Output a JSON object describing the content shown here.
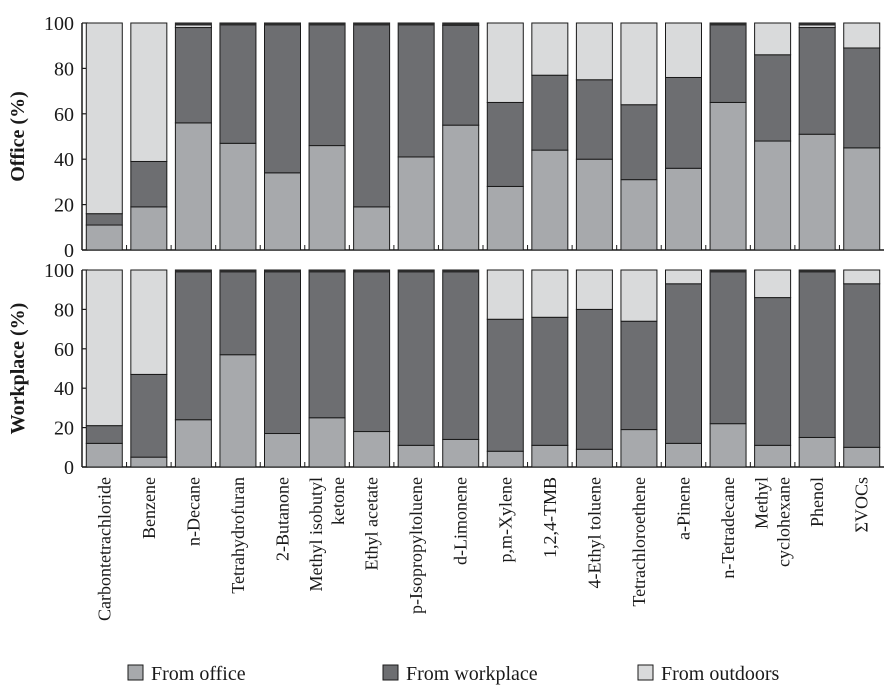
{
  "chart_data": {
    "type": "bar",
    "stacked": true,
    "categories": [
      "Carbontetrachloride",
      "Benzene",
      "n-Decane",
      "Tetrahydrofuran",
      "2-Butanone",
      "Methyl isobutyl ketone",
      "Ethyl acetate",
      "p-Isopropyltoluene",
      "d-Limonene",
      "p,m-Xylene",
      "1,2,4-TMB",
      "4-Ethyl toluene",
      "Tetrachloroethene",
      "a-Pinene",
      "n-Tetradecane",
      "Methyl cyclohexane",
      "Phenol",
      "ΣVOCs"
    ],
    "category_lines": [
      [
        "Carbontetrachloride"
      ],
      [
        "Benzene"
      ],
      [
        "n-Decane"
      ],
      [
        "Tetrahydrofuran"
      ],
      [
        "2-Butanone"
      ],
      [
        "Methyl isobutyl",
        "ketone"
      ],
      [
        "Ethyl acetate"
      ],
      [
        "p-Isopropyltoluene"
      ],
      [
        "d-Limonene"
      ],
      [
        "p,m-Xylene"
      ],
      [
        "1,2,4-TMB"
      ],
      [
        "4-Ethyl toluene"
      ],
      [
        "Tetrachloroethene"
      ],
      [
        "a-Pinene"
      ],
      [
        "n-Tetradecane"
      ],
      [
        "Methyl",
        "cyclohexane"
      ],
      [
        "Phenol"
      ],
      [
        "ΣVOCs"
      ]
    ],
    "legend": {
      "position": "bottom",
      "entries": [
        {
          "label": "From office",
          "color": "#a7a9ac"
        },
        {
          "label": "From workplace",
          "color": "#6d6e71"
        },
        {
          "label": "From outdoors",
          "color": "#d9dadb"
        }
      ]
    },
    "panels": [
      {
        "ylabel": "Office (%)",
        "ylim": [
          0,
          100
        ],
        "yticks": [
          0,
          20,
          40,
          60,
          80,
          100
        ],
        "series": [
          {
            "name": "From office",
            "values": [
              11,
              19,
              56,
              47,
              34,
              46,
              19,
              41,
              55,
              28,
              44,
              40,
              31,
              36,
              65,
              48,
              51,
              45
            ]
          },
          {
            "name": "From workplace",
            "values": [
              5,
              20,
              42,
              53,
              66,
              54,
              81,
              59,
              44,
              37,
              33,
              35,
              33,
              40,
              35,
              38,
              47,
              44
            ]
          },
          {
            "name": "From outdoors",
            "values": [
              84,
              61,
              2,
              0,
              0,
              0,
              0,
              0,
              1,
              35,
              23,
              25,
              36,
              24,
              0,
              14,
              2,
              11
            ]
          }
        ]
      },
      {
        "ylabel": "Workplace (%)",
        "ylim": [
          0,
          100
        ],
        "yticks": [
          0,
          20,
          40,
          60,
          80,
          100
        ],
        "series": [
          {
            "name": "From office",
            "values": [
              12,
              5,
              24,
              57,
              17,
              25,
              18,
              11,
              14,
              8,
              11,
              9,
              19,
              12,
              22,
              11,
              15,
              10
            ]
          },
          {
            "name": "From workplace",
            "values": [
              9,
              42,
              76,
              43,
              83,
              75,
              82,
              89,
              86,
              67,
              65,
              71,
              55,
              81,
              78,
              75,
              85,
              83
            ]
          },
          {
            "name": "From outdoors",
            "values": [
              79,
              53,
              0,
              0,
              0,
              0,
              0,
              0,
              0,
              25,
              24,
              20,
              26,
              7,
              0,
              14,
              0,
              7
            ]
          }
        ]
      }
    ]
  },
  "page": {
    "dark_cap_color": "#2b2b2b"
  }
}
